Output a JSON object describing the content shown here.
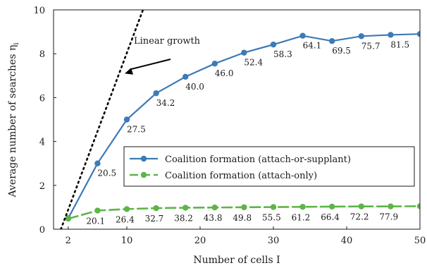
{
  "chart_data": {
    "type": "line",
    "title": "",
    "xlabel": "Number of cells I",
    "ylabel": "Average number of searches η",
    "ylabel_subscript": "i",
    "xlim": [
      0,
      50
    ],
    "ylim": [
      0,
      10
    ],
    "xticks": [
      2,
      10,
      20,
      30,
      40,
      50
    ],
    "yticks": [
      0,
      2,
      4,
      6,
      8,
      10
    ],
    "grid": false,
    "legend_position": "center-right",
    "series": [
      {
        "name": "Coalition formation (attach-or-supplant)",
        "color": "#3d7ab8",
        "line_style": "solid",
        "marker": "circle",
        "x": [
          2,
          6,
          10,
          14,
          18,
          22,
          26,
          30,
          34,
          38,
          42,
          46,
          50
        ],
        "y": [
          0.5,
          3.0,
          5.0,
          6.2,
          6.95,
          7.55,
          8.05,
          8.42,
          8.82,
          8.58,
          8.8,
          8.86,
          8.9
        ],
        "labels": [
          "",
          "20.5",
          "27.5",
          "34.2",
          "40.0",
          "46.0",
          "52.4",
          "58.3",
          "64.1",
          "69.5",
          "75.7",
          "81.5",
          ""
        ]
      },
      {
        "name": "Coalition formation (attach-only)",
        "color": "#5cb548",
        "line_style": "dashed",
        "marker": "circle",
        "x": [
          2,
          6,
          10,
          14,
          18,
          22,
          26,
          30,
          34,
          38,
          42,
          46,
          50
        ],
        "y": [
          0.48,
          0.85,
          0.92,
          0.96,
          0.98,
          0.99,
          1.0,
          1.01,
          1.02,
          1.03,
          1.04,
          1.04,
          1.05
        ],
        "labels": [
          "",
          "20.1",
          "26.4",
          "32.7",
          "38.2",
          "43.8",
          "49.8",
          "55.5",
          "61.2",
          "66.4",
          "72.2",
          "77.9",
          ""
        ]
      },
      {
        "name": "",
        "color": "#000000",
        "line_style": "dotted",
        "marker": "none",
        "x": [
          1,
          12.2
        ],
        "y": [
          0,
          10
        ]
      }
    ],
    "annotations": [
      {
        "text": "Linear growth",
        "points_to": {
          "x": 10,
          "y": 7.0
        }
      }
    ]
  }
}
